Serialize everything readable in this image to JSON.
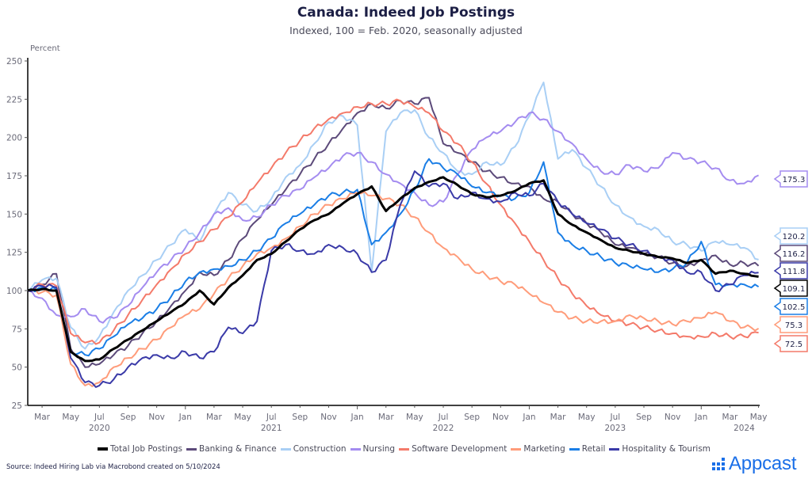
{
  "chart_data": {
    "type": "line",
    "title": "Canada: Indeed Job Postings",
    "subtitle": "Indexed, 100 = Feb. 2020, seasonally adjusted",
    "ylabel": "Percent",
    "xlabel": "",
    "ylim": [
      25,
      250
    ],
    "yticks": [
      25,
      50,
      75,
      100,
      125,
      150,
      175,
      200,
      225,
      250
    ],
    "grid": false,
    "legend_position": "bottom",
    "x_start": "2020-02",
    "x_end": "2024-05",
    "xtick_labels": [
      "Mar",
      "May",
      "Jul",
      "Sep",
      "Nov",
      "Jan",
      "Mar",
      "May",
      "Jul",
      "Sep",
      "Nov",
      "Jan",
      "Mar",
      "May",
      "Jul",
      "Sep",
      "Nov",
      "Jan",
      "Mar",
      "May",
      "Jul",
      "Sep",
      "Nov",
      "Jan",
      "Mar",
      "May"
    ],
    "xtick_months": [
      1,
      3,
      5,
      7,
      9,
      11,
      13,
      15,
      17,
      19,
      21,
      23,
      25,
      27,
      29,
      31,
      33,
      35,
      37,
      39,
      41,
      43,
      45,
      47,
      49,
      51
    ],
    "year_labels": [
      {
        "label": "2020",
        "month": 5
      },
      {
        "label": "2021",
        "month": 17
      },
      {
        "label": "2022",
        "month": 29
      },
      {
        "label": "2023",
        "month": 41
      },
      {
        "label": "2024",
        "month": 50
      }
    ],
    "x_months_note": "values are monthly, index 0 = Feb 2020 through index 51 = May 2024",
    "series": [
      {
        "name": "Total Job Postings",
        "color": "#000000",
        "end_label": "109.1",
        "values": [
          100,
          101,
          100,
          60,
          54,
          55,
          62,
          68,
          74,
          80,
          86,
          92,
          100,
          91,
          102,
          110,
          120,
          124,
          132,
          140,
          146,
          150,
          157,
          163,
          168,
          152,
          160,
          167,
          171,
          174,
          169,
          163,
          161,
          162,
          165,
          170,
          172,
          150,
          143,
          138,
          133,
          128,
          126,
          124,
          122,
          121,
          118,
          120,
          111,
          113,
          111,
          109.1
        ]
      },
      {
        "name": "Banking & Finance",
        "color": "#5c4a7a",
        "end_label": "116.2",
        "values": [
          100,
          104,
          111,
          62,
          50,
          52,
          58,
          64,
          72,
          80,
          90,
          100,
          112,
          110,
          120,
          134,
          146,
          156,
          166,
          176,
          186,
          196,
          206,
          216,
          222,
          219,
          224,
          222,
          226,
          196,
          190,
          184,
          178,
          174,
          170,
          168,
          160,
          158,
          150,
          144,
          138,
          130,
          128,
          124,
          122,
          118,
          116,
          120,
          123,
          117,
          118,
          116.2
        ]
      },
      {
        "name": "Construction",
        "color": "#a9cff5",
        "end_label": "120.2",
        "values": [
          100,
          107,
          108,
          76,
          62,
          70,
          86,
          100,
          110,
          120,
          130,
          140,
          132,
          150,
          164,
          156,
          152,
          160,
          174,
          182,
          196,
          210,
          214,
          208,
          112,
          204,
          216,
          218,
          200,
          190,
          178,
          176,
          184,
          182,
          194,
          214,
          236,
          186,
          192,
          180,
          168,
          156,
          148,
          142,
          140,
          132,
          130,
          126,
          132,
          130,
          128,
          120.2
        ]
      },
      {
        "name": "Nursing",
        "color": "#a48cf0",
        "end_label": "175.3",
        "values": [
          100,
          95,
          84,
          83,
          88,
          80,
          82,
          90,
          102,
          112,
          120,
          128,
          138,
          150,
          154,
          146,
          148,
          156,
          162,
          166,
          174,
          180,
          188,
          190,
          184,
          176,
          170,
          164,
          156,
          158,
          176,
          192,
          200,
          204,
          210,
          216,
          212,
          204,
          196,
          186,
          178,
          176,
          182,
          178,
          180,
          190,
          186,
          184,
          180,
          172,
          170,
          175.3
        ]
      },
      {
        "name": "Software Development",
        "color": "#f47a6a",
        "end_label": "72.5",
        "values": [
          100,
          104,
          103,
          72,
          66,
          66,
          74,
          84,
          94,
          104,
          114,
          124,
          132,
          140,
          148,
          158,
          170,
          180,
          190,
          198,
          206,
          212,
          216,
          220,
          222,
          222,
          224,
          220,
          216,
          204,
          196,
          184,
          170,
          156,
          144,
          132,
          120,
          108,
          98,
          90,
          84,
          80,
          78,
          76,
          74,
          72,
          70,
          70,
          72,
          70,
          70,
          72.5
        ]
      },
      {
        "name": "Marketing",
        "color": "#ff9c7a",
        "end_label": "75.3",
        "values": [
          100,
          99,
          97,
          52,
          38,
          40,
          50,
          56,
          62,
          68,
          76,
          84,
          88,
          98,
          108,
          116,
          124,
          128,
          134,
          142,
          150,
          156,
          160,
          164,
          162,
          160,
          156,
          148,
          138,
          128,
          122,
          114,
          110,
          106,
          104,
          98,
          92,
          86,
          82,
          80,
          80,
          80,
          84,
          82,
          80,
          78,
          80,
          82,
          86,
          80,
          76,
          75.3
        ]
      },
      {
        "name": "Retail",
        "color": "#1a7ee6",
        "end_label": "102.5",
        "values": [
          100,
          102,
          101,
          60,
          58,
          62,
          70,
          78,
          82,
          88,
          96,
          106,
          112,
          114,
          116,
          120,
          126,
          134,
          144,
          150,
          156,
          162,
          164,
          166,
          130,
          138,
          150,
          166,
          186,
          180,
          176,
          168,
          164,
          162,
          160,
          164,
          184,
          138,
          130,
          126,
          122,
          118,
          116,
          114,
          112,
          114,
          118,
          132,
          104,
          104,
          104,
          102.5
        ]
      },
      {
        "name": "Hospitality & Tourism",
        "color": "#3a3aa8",
        "end_label": "111.8",
        "values": [
          100,
          103,
          102,
          56,
          40,
          38,
          42,
          50,
          56,
          58,
          56,
          60,
          56,
          60,
          76,
          72,
          80,
          126,
          130,
          126,
          124,
          130,
          128,
          124,
          112,
          120,
          156,
          178,
          168,
          170,
          160,
          164,
          160,
          158,
          164,
          162,
          170,
          158,
          150,
          144,
          140,
          134,
          130,
          126,
          122,
          120,
          112,
          112,
          100,
          104,
          110,
          111.8
        ]
      }
    ]
  },
  "footer": {
    "source": "Source: Indeed Hiring Lab via Macrobond created on 5/10/2024",
    "brand": "Appcast"
  }
}
